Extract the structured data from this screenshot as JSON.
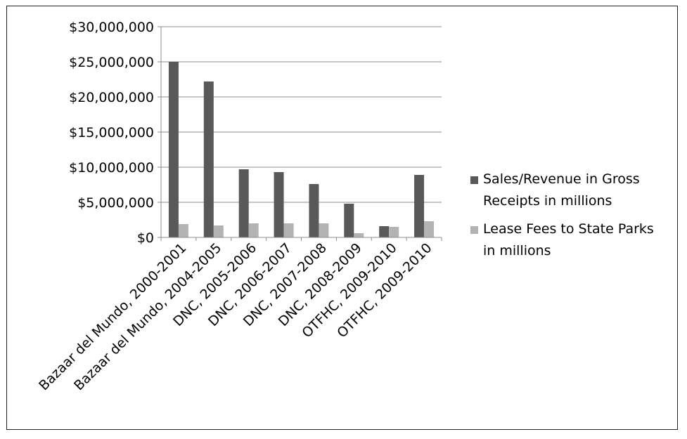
{
  "chart_data": {
    "type": "bar",
    "title": "",
    "xlabel": "",
    "ylabel": "",
    "categories": [
      "Bazaar del Mundo, 2000-2001",
      "Bazaar del Mundo, 2004-2005",
      "DNC, 2005-2006",
      "DNC, 2006-2007",
      "DNC, 2007-2008",
      "DNC, 2008-2009",
      "OTFHC, 2009-2010",
      "OTFHC, 2009-2010"
    ],
    "series": [
      {
        "name_lines": [
          "Sales/Revenue in Gross",
          "Receipts in millions"
        ],
        "color": "#595959",
        "values": [
          25000000,
          22200000,
          9700000,
          9300000,
          7600000,
          4800000,
          1600000,
          8900000
        ]
      },
      {
        "name_lines": [
          "Lease Fees to State Parks",
          "in millions"
        ],
        "color": "#b3b3b3",
        "values": [
          1900000,
          1700000,
          2000000,
          2000000,
          2000000,
          600000,
          1500000,
          2300000
        ]
      }
    ],
    "ylim": [
      0,
      30000000
    ],
    "yticks": [
      0,
      5000000,
      10000000,
      15000000,
      20000000,
      25000000,
      30000000
    ],
    "ytick_labels": [
      "$0",
      "$5,000,000",
      "$10,000,000",
      "$15,000,000",
      "$20,000,000",
      "$25,000,000",
      "$30,000,000"
    ],
    "grid": true,
    "legend_position": "right"
  }
}
